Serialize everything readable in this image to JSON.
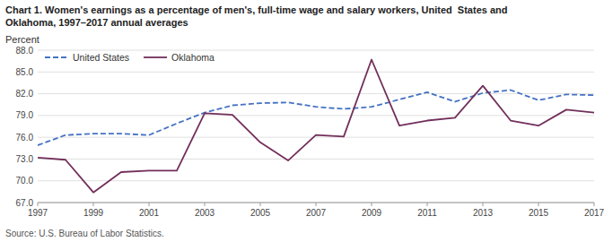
{
  "chart_data": {
    "type": "line",
    "title": "Chart 1. Women's earnings as a percentage of men's, full-time wage and salary workers, United  States and\nOklahoma, 1997–2017 annual averages",
    "y_label": "Percent",
    "source": "Source: U.S. Bureau of Labor Statistics.",
    "x": [
      1997,
      1998,
      1999,
      2000,
      2001,
      2002,
      2003,
      2004,
      2005,
      2006,
      2007,
      2008,
      2009,
      2010,
      2011,
      2012,
      2013,
      2014,
      2015,
      2016,
      2017
    ],
    "series": [
      {
        "name": "United States",
        "color": "#4472C4",
        "line_style": "dashed",
        "values": [
          74.9,
          76.3,
          76.5,
          76.5,
          76.3,
          77.9,
          79.4,
          80.4,
          80.7,
          80.8,
          80.2,
          79.9,
          80.2,
          81.2,
          82.2,
          80.9,
          82.1,
          82.5,
          81.1,
          81.9,
          81.8
        ]
      },
      {
        "name": "Oklahoma",
        "color": "#722F5B",
        "line_style": "solid",
        "values": [
          73.2,
          72.9,
          68.4,
          71.2,
          71.4,
          71.4,
          79.3,
          79.1,
          75.3,
          72.8,
          76.3,
          76.1,
          86.7,
          77.6,
          78.3,
          78.7,
          83.1,
          78.3,
          77.6,
          79.8,
          79.4
        ]
      }
    ],
    "xlim": [
      1997,
      2017
    ],
    "xticks": [
      1997,
      1999,
      2001,
      2003,
      2005,
      2007,
      2009,
      2011,
      2013,
      2015,
      2017
    ],
    "ylim": [
      67.0,
      88.0
    ],
    "yticks": [
      {
        "value": 67.0,
        "label": "67.0"
      },
      {
        "value": 70.0,
        "label": "70.0"
      },
      {
        "value": 73.0,
        "label": "73.0"
      },
      {
        "value": 76.0,
        "label": "76.0"
      },
      {
        "value": 79.0,
        "label": "79.0"
      },
      {
        "value": 82.0,
        "label": "82.0"
      },
      {
        "value": 85.0,
        "label": "85.0"
      },
      {
        "value": 88.0,
        "label": "88.0"
      }
    ],
    "grid": true,
    "legend": "upper left"
  }
}
